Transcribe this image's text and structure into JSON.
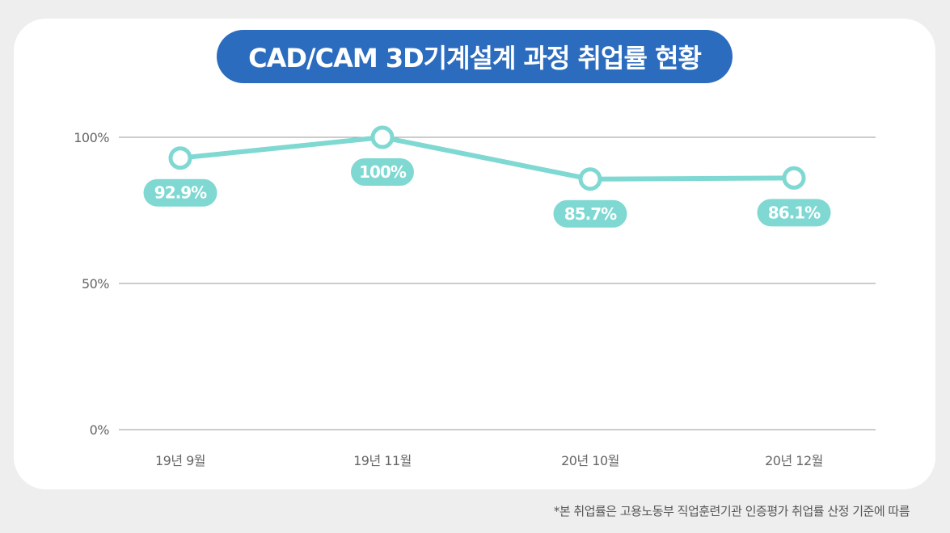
{
  "title": "CAD/CAM 3D기계설계 과정 취업률 현황",
  "footnote": "*본 취업률은 고용노동부 직업훈련기관 인증평가 취업률 산정 기준에 따름",
  "colors": {
    "title_bg": "#2b6cbf",
    "line": "#7fd8d2",
    "grid": "#999999",
    "text": "#666666"
  },
  "chart_data": {
    "type": "line",
    "title": "",
    "xlabel": "",
    "ylabel": "",
    "categories": [
      "19년 9월",
      "19년 11월",
      "20년 10월",
      "20년 12월"
    ],
    "values": [
      92.9,
      100,
      85.7,
      86.1
    ],
    "data_labels": [
      "92.9%",
      "100%",
      "85.7%",
      "86.1%"
    ],
    "y_ticks": [
      {
        "value": 0,
        "label": "0%"
      },
      {
        "value": 50,
        "label": "50%"
      },
      {
        "value": 100,
        "label": "100%"
      }
    ],
    "ylim": [
      0,
      100
    ],
    "grid": true,
    "legend": "none"
  }
}
